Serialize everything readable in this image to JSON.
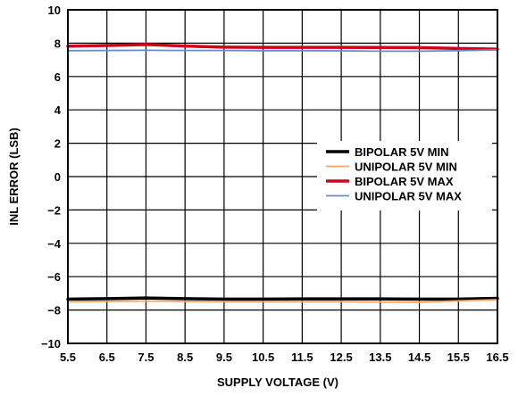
{
  "chart_data": {
    "type": "line",
    "title": "",
    "xlabel": "SUPPLY VOLTAGE (V)",
    "ylabel": "INL ERROR (LSB)",
    "xlim": [
      5.5,
      16.5
    ],
    "ylim": [
      -10,
      10
    ],
    "xticks": [
      5.5,
      6.5,
      7.5,
      8.5,
      9.5,
      10.5,
      11.5,
      12.5,
      13.5,
      14.5,
      15.5,
      16.5
    ],
    "yticks": [
      -10,
      -8,
      -6,
      -4,
      -2,
      0,
      2,
      4,
      6,
      8,
      10
    ],
    "xtick_labels": [
      "5.5",
      "6.5",
      "7.5",
      "8.5",
      "9.5",
      "10.5",
      "11.5",
      "12.5",
      "13.5",
      "14.5",
      "15.5",
      "16.5"
    ],
    "ytick_labels": [
      "−10",
      "−8",
      "−6",
      "−4",
      "−2",
      "0",
      "2",
      "4",
      "6",
      "8",
      "10"
    ],
    "grid": true,
    "legend_position": "right",
    "x": [
      5.5,
      6.5,
      7.5,
      8.5,
      9.5,
      10.5,
      11.5,
      12.5,
      13.5,
      14.5,
      15.5,
      16.5
    ],
    "series": [
      {
        "name": "BIPOLAR 5V MIN",
        "color": "#000000",
        "line_style": "thick",
        "values": [
          -7.35,
          -7.32,
          -7.28,
          -7.32,
          -7.35,
          -7.35,
          -7.33,
          -7.33,
          -7.33,
          -7.35,
          -7.35,
          -7.3
        ]
      },
      {
        "name": "UNIPOLAR 5V MIN",
        "color": "#f4a261",
        "line_style": "thin",
        "values": [
          -7.5,
          -7.48,
          -7.46,
          -7.48,
          -7.5,
          -7.5,
          -7.5,
          -7.5,
          -7.52,
          -7.53,
          -7.45,
          -7.38
        ]
      },
      {
        "name": "BIPOLAR 5V MAX",
        "color": "#d0021b",
        "line_style": "thick",
        "values": [
          7.82,
          7.86,
          7.92,
          7.83,
          7.76,
          7.75,
          7.75,
          7.75,
          7.74,
          7.73,
          7.68,
          7.64
        ]
      },
      {
        "name": "UNIPOLAR 5V MAX",
        "color": "#6b8cc7",
        "line_style": "thin",
        "values": [
          7.55,
          7.56,
          7.57,
          7.56,
          7.56,
          7.55,
          7.55,
          7.54,
          7.52,
          7.52,
          7.55,
          7.6
        ]
      }
    ]
  }
}
